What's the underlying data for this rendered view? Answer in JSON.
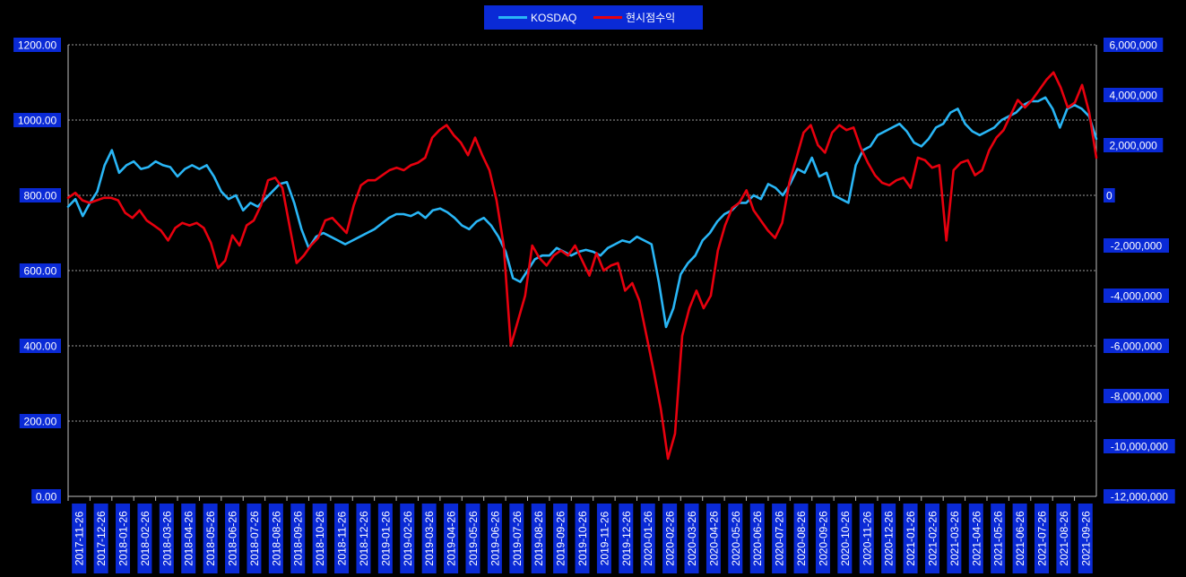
{
  "chart_data": {
    "type": "line",
    "legend": {
      "position": "top-center",
      "entries": [
        {
          "name": "KOSDAQ",
          "color": "#29b6f6"
        },
        {
          "name": "현시점수익",
          "color": "#e8000e"
        }
      ]
    },
    "y_left": {
      "ticks": [
        "0.00",
        "200.00",
        "400.00",
        "600.00",
        "800.00",
        "1000.00",
        "1200.00"
      ],
      "min": 0,
      "max": 1200
    },
    "y_right": {
      "ticks": [
        "-12,000,000",
        "-10,000,000",
        "-8,000,000",
        "-6,000,000",
        "-4,000,000",
        "-2,000,000",
        "0",
        "2,000,000",
        "4,000,000",
        "6,000,000"
      ],
      "min": -12000000,
      "max": 6000000
    },
    "grid": "horizontal",
    "x_labels": [
      "2017-11-26",
      "2017-12-26",
      "2018-01-26",
      "2018-02-26",
      "2018-03-26",
      "2018-04-26",
      "2018-05-26",
      "2018-06-26",
      "2018-07-26",
      "2018-08-26",
      "2018-09-26",
      "2018-10-26",
      "2018-11-26",
      "2018-12-26",
      "2019-01-26",
      "2019-02-26",
      "2019-03-26",
      "2019-04-26",
      "2019-05-26",
      "2019-06-26",
      "2019-07-26",
      "2019-08-26",
      "2019-09-26",
      "2019-10-26",
      "2019-11-26",
      "2019-12-26",
      "2020-01-26",
      "2020-02-26",
      "2020-03-26",
      "2020-04-26",
      "2020-05-26",
      "2020-06-26",
      "2020-07-26",
      "2020-08-26",
      "2020-09-26",
      "2020-10-26",
      "2020-11-26",
      "2020-12-26",
      "2021-01-26",
      "2021-02-26",
      "2021-03-26",
      "2021-04-26",
      "2021-05-26",
      "2021-06-26",
      "2021-07-26",
      "2021-08-26",
      "2021-09-26"
    ],
    "series": [
      {
        "name": "KOSDAQ",
        "axis": "left",
        "color": "#29b6f6",
        "values": [
          770,
          790,
          745,
          780,
          810,
          880,
          920,
          860,
          880,
          890,
          870,
          875,
          890,
          880,
          875,
          850,
          870,
          880,
          870,
          880,
          850,
          810,
          790,
          800,
          760,
          780,
          770,
          790,
          810,
          830,
          835,
          780,
          710,
          660,
          690,
          700,
          690,
          680,
          670,
          680,
          690,
          700,
          710,
          725,
          740,
          750,
          750,
          745,
          755,
          740,
          760,
          765,
          755,
          740,
          720,
          710,
          730,
          740,
          720,
          690,
          650,
          580,
          570,
          600,
          630,
          640,
          640,
          660,
          650,
          640,
          650,
          655,
          650,
          640,
          660,
          670,
          680,
          675,
          690,
          680,
          670,
          570,
          450,
          500,
          590,
          620,
          640,
          680,
          700,
          730,
          750,
          760,
          780,
          780,
          800,
          790,
          830,
          820,
          800,
          830,
          870,
          860,
          900,
          850,
          860,
          800,
          790,
          780,
          880,
          920,
          930,
          960,
          970,
          980,
          990,
          970,
          940,
          930,
          950,
          980,
          990,
          1020,
          1030,
          990,
          970,
          960,
          970,
          980,
          1000,
          1010,
          1020,
          1040,
          1050,
          1050,
          1060,
          1030,
          980,
          1030,
          1040,
          1030,
          1010,
          950
        ]
      },
      {
        "name": "현시점수익",
        "axis": "right",
        "color": "#e8000e",
        "values": [
          -100000,
          100000,
          -200000,
          -300000,
          -200000,
          -100000,
          -100000,
          -200000,
          -700000,
          -900000,
          -600000,
          -1000000,
          -1200000,
          -1400000,
          -1800000,
          -1300000,
          -1100000,
          -1200000,
          -1100000,
          -1300000,
          -1900000,
          -2900000,
          -2600000,
          -1600000,
          -2000000,
          -1200000,
          -1000000,
          -400000,
          600000,
          700000,
          300000,
          -1200000,
          -2700000,
          -2400000,
          -2000000,
          -1700000,
          -1000000,
          -900000,
          -1200000,
          -1500000,
          -400000,
          400000,
          600000,
          600000,
          800000,
          1000000,
          1100000,
          1000000,
          1200000,
          1300000,
          1500000,
          2300000,
          2600000,
          2800000,
          2400000,
          2100000,
          1600000,
          2300000,
          1600000,
          1000000,
          -200000,
          -2000000,
          -6000000,
          -5000000,
          -4000000,
          -2000000,
          -2500000,
          -2800000,
          -2400000,
          -2200000,
          -2400000,
          -2000000,
          -2600000,
          -3200000,
          -2300000,
          -3000000,
          -2800000,
          -2700000,
          -3800000,
          -3500000,
          -4200000,
          -5600000,
          -7000000,
          -8500000,
          -10500000,
          -9500000,
          -5600000,
          -4500000,
          -3800000,
          -4500000,
          -4000000,
          -2200000,
          -1200000,
          -500000,
          -300000,
          200000,
          -600000,
          -1000000,
          -1400000,
          -1700000,
          -1100000,
          500000,
          1500000,
          2500000,
          2800000,
          2000000,
          1700000,
          2500000,
          2800000,
          2600000,
          2700000,
          1900000,
          1300000,
          800000,
          500000,
          400000,
          600000,
          700000,
          300000,
          1500000,
          1400000,
          1100000,
          1200000,
          -1800000,
          1000000,
          1300000,
          1400000,
          800000,
          1000000,
          1800000,
          2300000,
          2600000,
          3200000,
          3800000,
          3500000,
          3800000,
          4200000,
          4600000,
          4900000,
          4300000,
          3500000,
          3700000,
          4400000,
          3300000,
          1500000
        ]
      }
    ]
  }
}
